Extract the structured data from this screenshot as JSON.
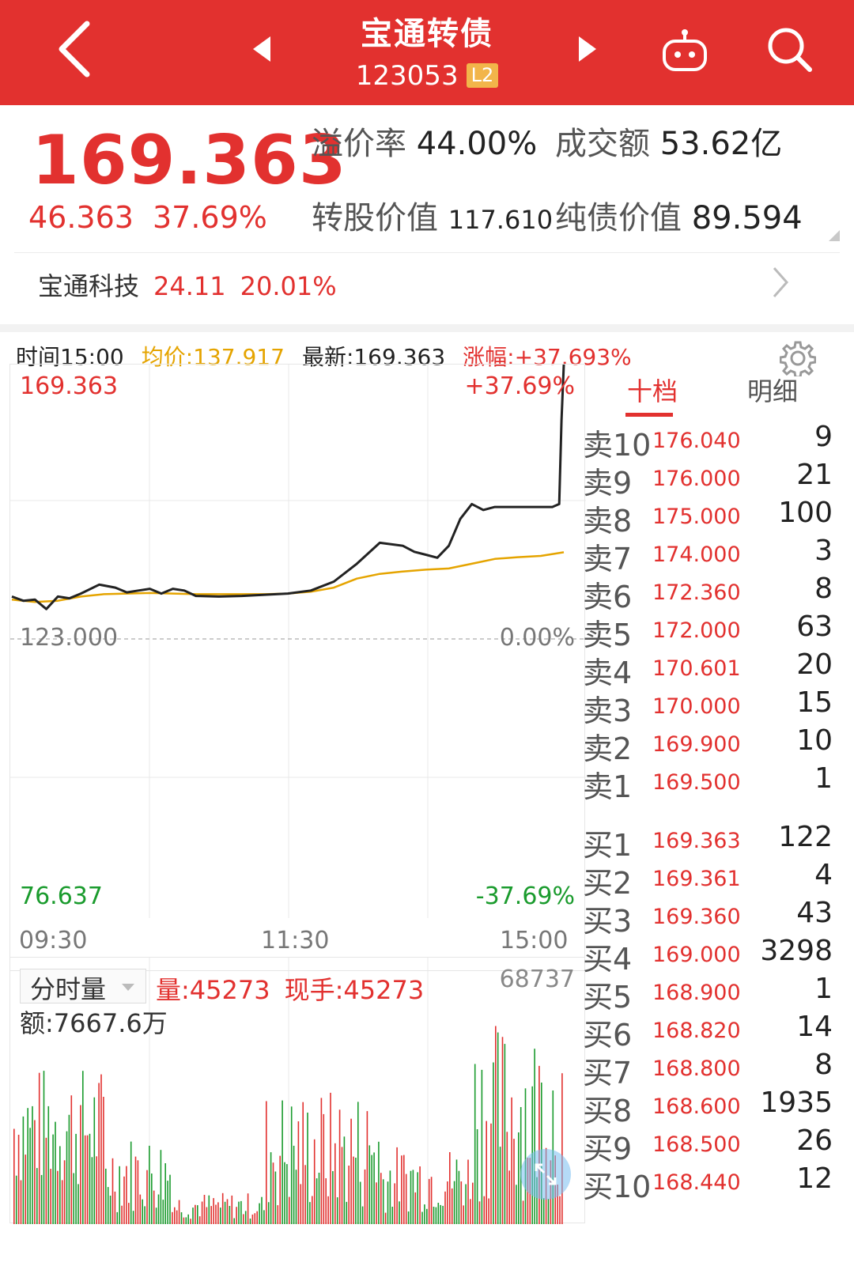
{
  "header": {
    "title": "宝通转债",
    "code": "123053",
    "badge": "L2"
  },
  "colors": {
    "up": "#e2312f",
    "down": "#1a9b2d",
    "avg_line": "#e5a400",
    "header_bg": "#e2312f"
  },
  "icons": [
    "back-arrow-icon",
    "prev-stock-icon",
    "next-stock-icon",
    "robot-icon",
    "search-icon",
    "chevron-right-icon",
    "gear-icon",
    "expand-icon"
  ],
  "quote": {
    "price": "169.363",
    "change": "46.363",
    "change_pct": "37.69%",
    "premium_label": "溢价率",
    "premium_value": "44.00%",
    "turnover_label": "成交额",
    "turnover_value": "53.62亿",
    "conv_label": "转股价值",
    "conv_value": "117.610",
    "bond_label": "纯债价值",
    "bond_value": "89.594"
  },
  "underlying": {
    "name": "宝通科技",
    "price": "24.11",
    "change_pct": "20.01%"
  },
  "infobar": {
    "time": "时间15:00",
    "avg": "均价:137.917",
    "latest": "最新:169.363",
    "change": "涨幅:+37.693%"
  },
  "chart_labels": {
    "top_left": "169.363",
    "top_right": "+37.69%",
    "mid_left": "123.000",
    "mid_right": "0.00%",
    "bottom_left": "76.637",
    "bottom_right": "-37.69%",
    "time_start": "09:30",
    "time_mid": "11:30",
    "time_end": "15:00"
  },
  "volume": {
    "selector": "分时量",
    "vol": "量:45273",
    "hand": "现手:45273",
    "amount": "额:7667.6万",
    "max": "68737"
  },
  "chart_data": {
    "type": "line",
    "title": "",
    "y_range": [
      76.637,
      169.363
    ],
    "prev_close": 123.0,
    "x_range": [
      "09:30",
      "15:00"
    ],
    "series": [
      {
        "color": "#222222",
        "x": [
          0,
          5,
          10,
          15,
          20,
          25,
          30,
          38,
          45,
          50,
          55,
          60,
          65,
          70,
          75,
          80,
          90,
          100,
          110,
          120,
          130,
          140,
          150,
          160,
          170,
          175,
          180,
          185,
          190,
          195,
          200,
          205,
          210,
          215,
          220,
          225,
          230,
          235,
          238,
          239,
          240
        ],
        "values": [
          130.5,
          129.8,
          130.0,
          128.4,
          130.5,
          130.2,
          131.0,
          132.5,
          132.0,
          131.2,
          131.5,
          131.8,
          131.0,
          131.8,
          131.5,
          130.6,
          130.5,
          130.6,
          130.8,
          131.0,
          131.5,
          133.0,
          136.0,
          139.5,
          139.0,
          138.0,
          137.5,
          137.0,
          139.0,
          143.5,
          146.0,
          145.0,
          145.5,
          145.5,
          145.5,
          145.5,
          145.5,
          145.5,
          146.0,
          160.0,
          169.363
        ]
      },
      {
        "color": "#e5a400",
        "x": [
          0,
          10,
          20,
          30,
          40,
          50,
          60,
          70,
          80,
          90,
          100,
          110,
          120,
          130,
          140,
          150,
          160,
          170,
          180,
          190,
          200,
          210,
          220,
          230,
          240
        ],
        "values": [
          130.0,
          129.6,
          129.8,
          130.5,
          130.9,
          131.0,
          131.1,
          131.0,
          130.9,
          130.9,
          130.9,
          130.9,
          131.0,
          131.3,
          132.0,
          133.5,
          134.3,
          134.7,
          135.0,
          135.2,
          136.0,
          136.8,
          137.1,
          137.3,
          137.917
        ]
      }
    ]
  },
  "volume_chart": {
    "type": "bar",
    "max": 68737
  },
  "orderbook": {
    "tab_active": "十档",
    "tab_other": "明细",
    "sell": [
      {
        "label": "卖10",
        "price": "176.040",
        "qty": "9"
      },
      {
        "label": "卖9",
        "price": "176.000",
        "qty": "21"
      },
      {
        "label": "卖8",
        "price": "175.000",
        "qty": "100"
      },
      {
        "label": "卖7",
        "price": "174.000",
        "qty": "3"
      },
      {
        "label": "卖6",
        "price": "172.360",
        "qty": "8"
      },
      {
        "label": "卖5",
        "price": "172.000",
        "qty": "63"
      },
      {
        "label": "卖4",
        "price": "170.601",
        "qty": "20"
      },
      {
        "label": "卖3",
        "price": "170.000",
        "qty": "15"
      },
      {
        "label": "卖2",
        "price": "169.900",
        "qty": "10"
      },
      {
        "label": "卖1",
        "price": "169.500",
        "qty": "1"
      }
    ],
    "buy": [
      {
        "label": "买1",
        "price": "169.363",
        "qty": "122"
      },
      {
        "label": "买2",
        "price": "169.361",
        "qty": "4"
      },
      {
        "label": "买3",
        "price": "169.360",
        "qty": "43"
      },
      {
        "label": "买4",
        "price": "169.000",
        "qty": "3298"
      },
      {
        "label": "买5",
        "price": "168.900",
        "qty": "1"
      },
      {
        "label": "买6",
        "price": "168.820",
        "qty": "14"
      },
      {
        "label": "买7",
        "price": "168.800",
        "qty": "8"
      },
      {
        "label": "买8",
        "price": "168.600",
        "qty": "1935"
      },
      {
        "label": "买9",
        "price": "168.500",
        "qty": "26"
      },
      {
        "label": "买10",
        "price": "168.440",
        "qty": "12"
      }
    ]
  }
}
